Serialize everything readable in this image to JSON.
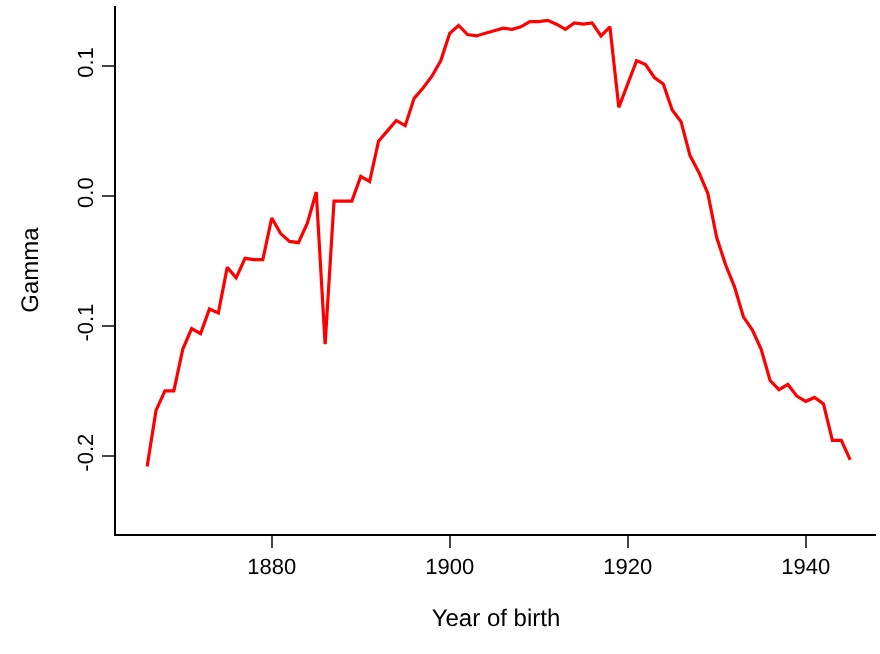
{
  "chart_data": {
    "type": "line",
    "xlabel": "Year of birth",
    "ylabel": "Gamma",
    "x": [
      1866,
      1867,
      1868,
      1869,
      1870,
      1871,
      1872,
      1873,
      1874,
      1875,
      1876,
      1877,
      1878,
      1879,
      1880,
      1881,
      1882,
      1883,
      1884,
      1885,
      1886,
      1887,
      1888,
      1889,
      1890,
      1891,
      1892,
      1893,
      1894,
      1895,
      1896,
      1897,
      1898,
      1899,
      1900,
      1901,
      1902,
      1903,
      1904,
      1905,
      1906,
      1907,
      1908,
      1909,
      1910,
      1911,
      1912,
      1913,
      1914,
      1915,
      1916,
      1917,
      1918,
      1919,
      1920,
      1921,
      1922,
      1923,
      1924,
      1925,
      1926,
      1927,
      1928,
      1929,
      1930,
      1931,
      1932,
      1933,
      1934,
      1935,
      1936,
      1937,
      1938,
      1939,
      1940,
      1941,
      1942,
      1943,
      1944,
      1945
    ],
    "series": [
      {
        "color": "#ff0000",
        "values": [
          -0.208,
          -0.165,
          -0.15,
          -0.15,
          -0.118,
          -0.102,
          -0.106,
          -0.087,
          -0.09,
          -0.055,
          -0.063,
          -0.048,
          -0.049,
          -0.049,
          -0.017,
          -0.029,
          -0.035,
          -0.036,
          -0.021,
          0.003,
          -0.114,
          -0.004,
          -0.004,
          -0.004,
          0.015,
          0.011,
          0.042,
          0.05,
          0.058,
          0.054,
          0.075,
          0.083,
          0.092,
          0.104,
          0.125,
          0.131,
          0.124,
          0.123,
          0.125,
          0.127,
          0.129,
          0.128,
          0.13,
          0.134,
          0.134,
          0.135,
          0.132,
          0.128,
          0.133,
          0.132,
          0.133,
          0.123,
          0.13,
          0.068,
          0.086,
          0.104,
          0.101,
          0.091,
          0.086,
          0.066,
          0.057,
          0.031,
          0.018,
          0.002,
          -0.032,
          -0.053,
          -0.07,
          -0.093,
          -0.103,
          -0.118,
          -0.142,
          -0.149,
          -0.145,
          -0.154,
          -0.158,
          -0.155,
          -0.16,
          -0.188,
          -0.188,
          -0.203
        ]
      }
    ],
    "xlim": [
      1862.5,
      1947.9
    ],
    "xticks": [
      1880,
      1900,
      1920,
      1940
    ],
    "ylim": [
      -0.26,
      0.146
    ],
    "yticks": [
      {
        "value": 0.1,
        "label": "0.1"
      },
      {
        "value": 0.0,
        "label": "0.0"
      },
      {
        "value": -0.1,
        "label": "-0.1"
      },
      {
        "value": -0.2,
        "label": "-0.2"
      }
    ],
    "marker": "none",
    "line_style": "solid"
  }
}
